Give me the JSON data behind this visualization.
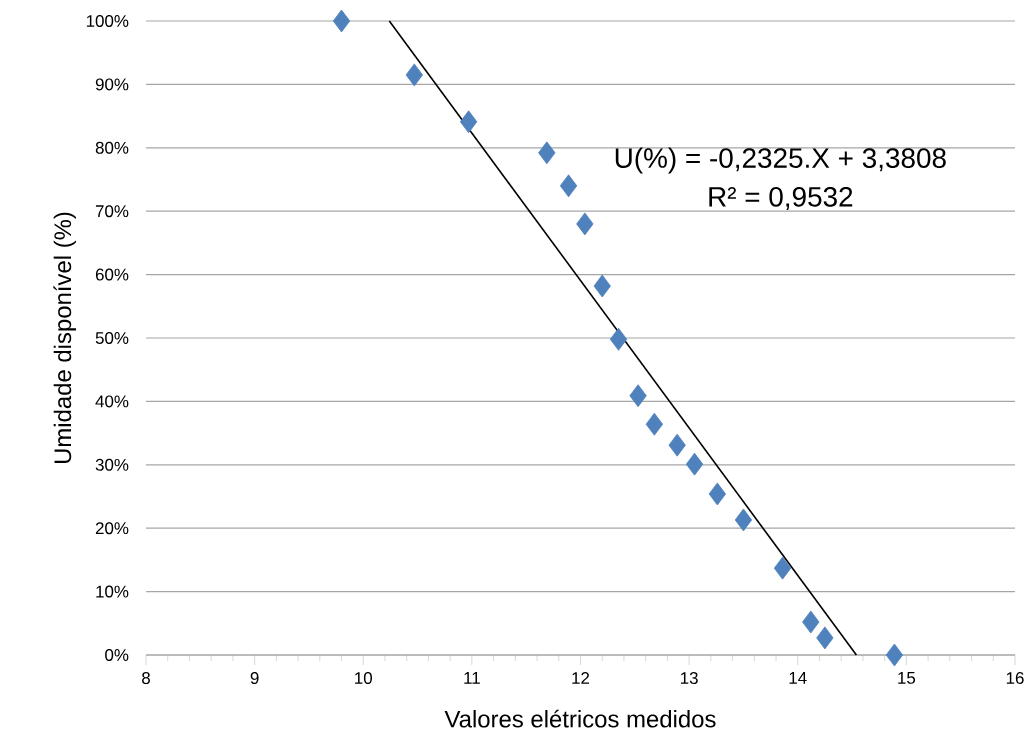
{
  "chart_data": {
    "type": "scatter",
    "xlabel": "Valores elétricos medidos",
    "ylabel": "Umidade disponível (%)",
    "xlim": [
      8,
      16
    ],
    "xticks": [
      8,
      9,
      10,
      11,
      12,
      13,
      14,
      15,
      16
    ],
    "ylim": [
      0,
      100
    ],
    "yticks": [
      {
        "value": 0,
        "label": "0%"
      },
      {
        "value": 10,
        "label": "10%"
      },
      {
        "value": 20,
        "label": "20%"
      },
      {
        "value": 30,
        "label": "30%"
      },
      {
        "value": 40,
        "label": "40%"
      },
      {
        "value": 50,
        "label": "50%"
      },
      {
        "value": 60,
        "label": "60%"
      },
      {
        "value": 70,
        "label": "70%"
      },
      {
        "value": 80,
        "label": "80%"
      },
      {
        "value": 90,
        "label": "90%"
      },
      {
        "value": 100,
        "label": "100%"
      }
    ],
    "grid": "y",
    "marker": "diamond",
    "series": [
      {
        "color": "#4f81bd",
        "x": [
          9.8,
          10.47,
          10.97,
          11.69,
          11.89,
          12.04,
          12.2,
          12.35,
          12.53,
          12.68,
          12.89,
          13.05,
          13.26,
          13.5,
          13.86,
          14.12,
          14.25,
          14.89
        ],
        "values": [
          100,
          91.5,
          84.1,
          79.2,
          74.0,
          68.0,
          58.2,
          49.8,
          40.9,
          36.4,
          33.1,
          30.1,
          25.4,
          21.3,
          13.7,
          5.2,
          2.7,
          0
        ]
      },
      {
        "type": "line",
        "color": "#000000",
        "marker": "none",
        "x": [
          10.24,
          14.54
        ],
        "values": [
          100,
          0
        ]
      }
    ],
    "annotations": [
      "U(%) = -0,2325.X + 3,3808",
      "R² = 0,9532"
    ]
  }
}
